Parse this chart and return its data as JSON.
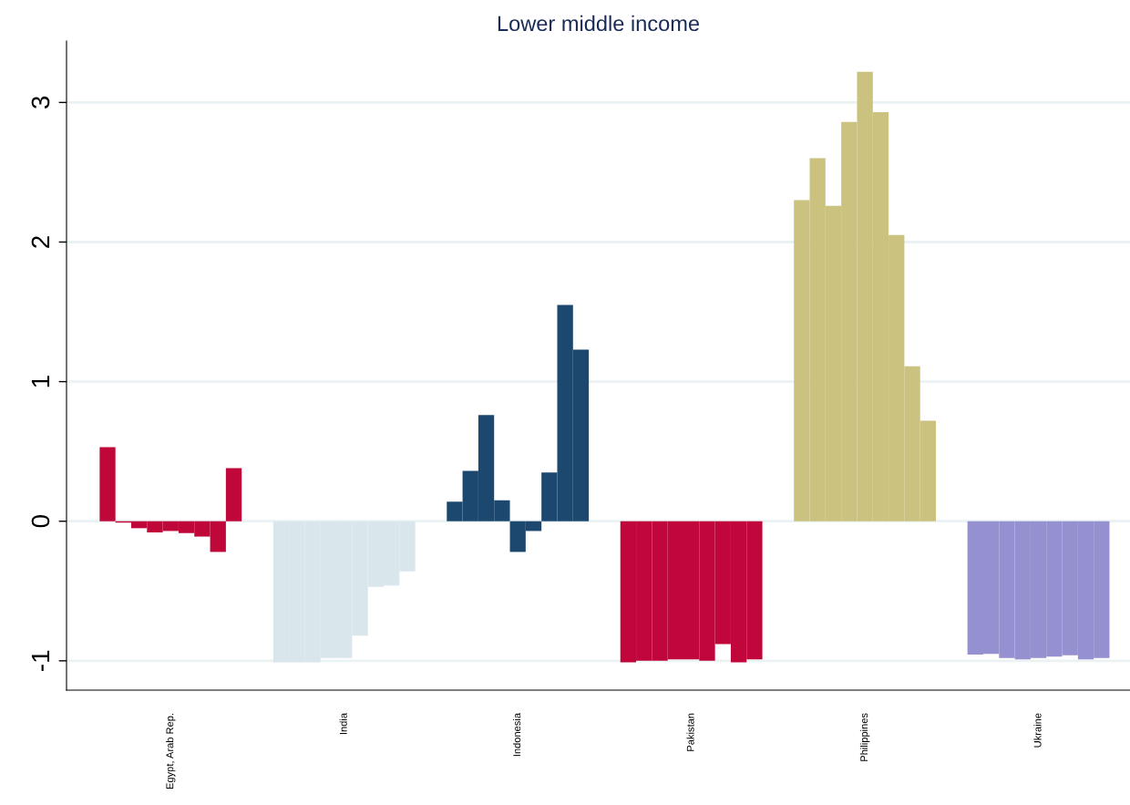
{
  "chart_data": {
    "type": "bar",
    "title": "Lower middle income",
    "categories": [
      null,
      null,
      null,
      null,
      "Egypt, Arab Rep.",
      null,
      null,
      null,
      null,
      null,
      null,
      null,
      null,
      null,
      null,
      "India",
      null,
      null,
      null,
      null,
      null,
      null,
      null,
      null,
      null,
      null,
      "Indonesia",
      null,
      null,
      null,
      null,
      null,
      null,
      null,
      null,
      null,
      null,
      "Pakistan",
      null,
      null,
      null,
      null,
      null,
      null,
      null,
      null,
      null,
      null,
      "Philippines",
      null,
      null,
      null,
      null,
      null,
      null,
      null,
      null,
      null,
      null,
      "Ukraine",
      null,
      null,
      null,
      null
    ],
    "values": [
      0.53,
      -0.01,
      -0.05,
      -0.08,
      -0.07,
      -0.085,
      -0.11,
      -0.22,
      0.38,
      null,
      null,
      -1.01,
      -1.01,
      -1.01,
      -0.98,
      -0.98,
      -0.82,
      -0.47,
      -0.46,
      -0.36,
      null,
      null,
      0.14,
      0.36,
      0.76,
      0.15,
      -0.22,
      -0.07,
      0.35,
      1.55,
      1.23,
      null,
      null,
      -1.01,
      -1.0,
      -1.0,
      -0.99,
      -0.99,
      -1.0,
      -0.88,
      -1.01,
      -0.99,
      null,
      null,
      2.3,
      2.6,
      2.26,
      2.86,
      3.22,
      2.93,
      2.05,
      1.11,
      0.72,
      null,
      null,
      -0.955,
      -0.95,
      -0.98,
      -0.99,
      -0.98,
      -0.97,
      -0.96,
      -0.99,
      -0.98
    ],
    "colors": [
      "#c0073a",
      "#c0073a",
      "#c0073a",
      "#c0073a",
      "#c0073a",
      "#c0073a",
      "#c0073a",
      "#c0073a",
      "#c0073a",
      null,
      null,
      "#d9e6ec",
      "#d9e6ec",
      "#d9e6ec",
      "#d9e6ec",
      "#d9e6ec",
      "#d9e6ec",
      "#d9e6ec",
      "#d9e6ec",
      "#d9e6ec",
      null,
      null,
      "#1c4870",
      "#1c4870",
      "#1c4870",
      "#1c4870",
      "#1c4870",
      "#1c4870",
      "#1c4870",
      "#1c4870",
      "#1c4870",
      null,
      null,
      "#c0063a",
      "#c0063a",
      "#c0063a",
      "#c0063a",
      "#c0063a",
      "#c0063a",
      "#c0063a",
      "#c0063a",
      "#c0063a",
      null,
      null,
      "#cac27e",
      "#cac27e",
      "#cac27e",
      "#cac27e",
      "#cac27e",
      "#cac27e",
      "#cac27e",
      "#cac27e",
      "#cac27e",
      null,
      null,
      "#9590d0",
      "#9590d0",
      "#9590d0",
      "#9590d0",
      "#9590d0",
      "#9590d0",
      "#9590d0",
      "#9590d0",
      "#9590d0"
    ],
    "ylim": [
      -1.21,
      3.44
    ],
    "yticks": [
      -1,
      0,
      1,
      2,
      3
    ],
    "grid": "y",
    "legend": false
  }
}
